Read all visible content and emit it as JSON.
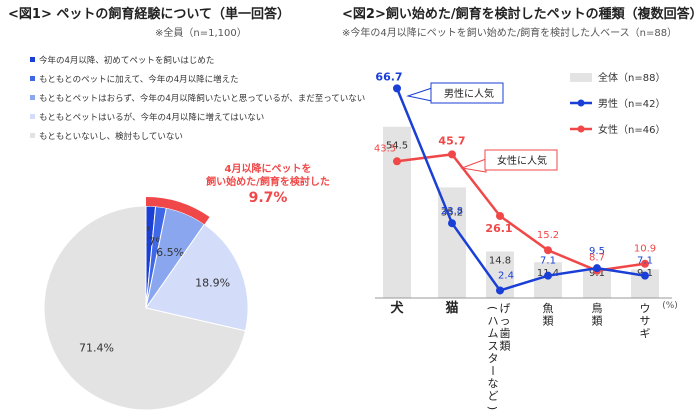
{
  "fig1": {
    "title": "<図1> ペットの飼育経験について（単一回答）",
    "subtitle": "※全員（n=1,100）",
    "legend": [
      {
        "label": "今年の4月以降、初めてペットを飼いはじめた",
        "color": "#1a3fd6"
      },
      {
        "label": "もともとのペットに加えて、今年の4月以降に増えた",
        "color": "#3f68e6"
      },
      {
        "label": "もともとペットはおらず、今年の4月以降飼いたいと思っているが、まだ至っていない",
        "color": "#8aa6ef"
      },
      {
        "label": "もともとペットはいるが、今年の4月以降に増えてはいない",
        "color": "#d3dcf8"
      },
      {
        "label": "もともといないし、検討もしていない",
        "color": "#e3e3e3"
      }
    ],
    "callout": {
      "line1": "4月以降にペットを",
      "line2": "飼い始めた/飼育を検討した",
      "value": "9.7%",
      "color": "#f04848"
    }
  },
  "fig2": {
    "title": "<図2>飼い始めた/飼育を検討したペットの種類（複数回答）",
    "subtitle": "※今年の4月以降にペットを飼い始めた/飼育を検討した人ベース（n=88）",
    "unit": "(%)",
    "callout_male": "男性に人気",
    "callout_female": "女性に人気"
  },
  "chart_data": [
    {
      "type": "pie",
      "labels": [
        "今年の4月以降、初めてペットを飼いはじめた",
        "もともとのペットに加えて、今年の4月以降に増えた",
        "もともとペットはおらず、今年の4月以降飼いたいと思っているが、まだ至っていない",
        "もともとペットはいるが、今年の4月以降に増えてはいない",
        "もともといないし、検討もしていない"
      ],
      "values": [
        1.5,
        1.7,
        6.5,
        18.9,
        71.4
      ],
      "value_labels": [
        "1.5%",
        "1.7%",
        "6.5%",
        "18.9%",
        "71.4%"
      ],
      "colors": [
        "#1a3fd6",
        "#3f68e6",
        "#8aa6ef",
        "#d3dcf8",
        "#e3e3e3"
      ]
    },
    {
      "type": "bar",
      "categories": [
        "犬",
        "猫",
        "げっ歯類（ハムスターなど）",
        "魚類",
        "鳥類",
        "ウサギ"
      ],
      "series": [
        {
          "name": "全体（n=88）",
          "kind": "bar",
          "color": "#e3e3e3",
          "values": [
            54.5,
            35.2,
            14.8,
            11.4,
            9.1,
            9.1
          ]
        },
        {
          "name": "男性（n=42）",
          "kind": "line",
          "color": "#1a3fd6",
          "values": [
            66.7,
            23.8,
            2.4,
            7.1,
            9.5,
            7.1
          ]
        },
        {
          "name": "女性（n=46）",
          "kind": "line",
          "color": "#f04848",
          "values": [
            43.5,
            45.7,
            26.1,
            15.2,
            8.7,
            10.9
          ]
        }
      ],
      "ylim": [
        0,
        70
      ]
    }
  ]
}
